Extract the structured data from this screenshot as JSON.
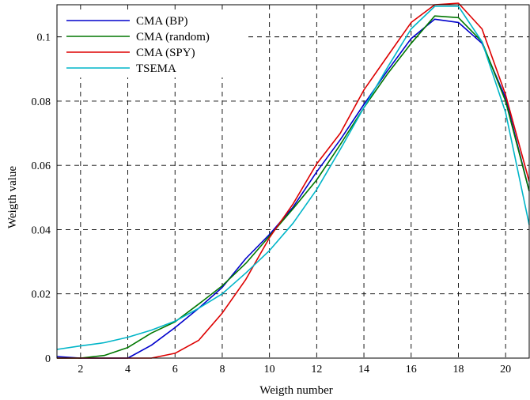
{
  "chart_data": {
    "type": "line",
    "title": "",
    "xlabel": "Weigth number",
    "ylabel": "Weigth value",
    "xlim": [
      1,
      21
    ],
    "ylim": [
      0,
      0.11
    ],
    "grid": true,
    "legend_position": "top-left",
    "xticks": [
      2,
      4,
      6,
      8,
      10,
      12,
      14,
      16,
      18,
      20
    ],
    "xtick_labels": [
      "2",
      "4",
      "6",
      "8",
      "10",
      "12",
      "14",
      "16",
      "18",
      "20"
    ],
    "yticks": [
      0,
      0.02,
      0.04,
      0.06,
      0.08,
      0.1
    ],
    "ytick_labels": [
      "0",
      "0.02",
      "0.04",
      "0.06",
      "0.08",
      "0.1"
    ],
    "x": [
      1,
      2,
      3,
      4,
      5,
      6,
      7,
      8,
      9,
      10,
      11,
      12,
      13,
      14,
      15,
      16,
      17,
      18,
      19,
      20,
      21
    ],
    "series": [
      {
        "name": "CMA (BP)",
        "color": "#0000cc",
        "values": [
          0.0005,
          0,
          0,
          0,
          0.004,
          0.0095,
          0.0155,
          0.022,
          0.031,
          0.0385,
          0.047,
          0.058,
          0.068,
          0.079,
          0.0895,
          0.0995,
          0.1055,
          0.1045,
          0.098,
          0.081,
          0.052
        ]
      },
      {
        "name": "CMA (random)",
        "color": "#007700",
        "values": [
          0,
          0,
          0.0008,
          0.0033,
          0.0078,
          0.0113,
          0.0168,
          0.0225,
          0.0295,
          0.038,
          0.0465,
          0.0555,
          0.0665,
          0.078,
          0.0885,
          0.098,
          0.1065,
          0.106,
          0.0985,
          0.08,
          0.052
        ]
      },
      {
        "name": "CMA (SPY)",
        "color": "#dd0000",
        "values": [
          0,
          0,
          0,
          0,
          0,
          0.0015,
          0.0055,
          0.014,
          0.0245,
          0.0375,
          0.048,
          0.0605,
          0.07,
          0.0835,
          0.094,
          0.1045,
          0.11,
          0.1105,
          0.1025,
          0.082,
          0.055
        ]
      },
      {
        "name": "TSEMA",
        "color": "#00b5c8",
        "values": [
          0.0027,
          0.0038,
          0.0048,
          0.0065,
          0.0087,
          0.0115,
          0.0155,
          0.02,
          0.0265,
          0.0335,
          0.042,
          0.0525,
          0.065,
          0.078,
          0.0905,
          0.1025,
          0.1095,
          0.1095,
          0.0985,
          0.0765,
          0.0415
        ]
      }
    ]
  }
}
